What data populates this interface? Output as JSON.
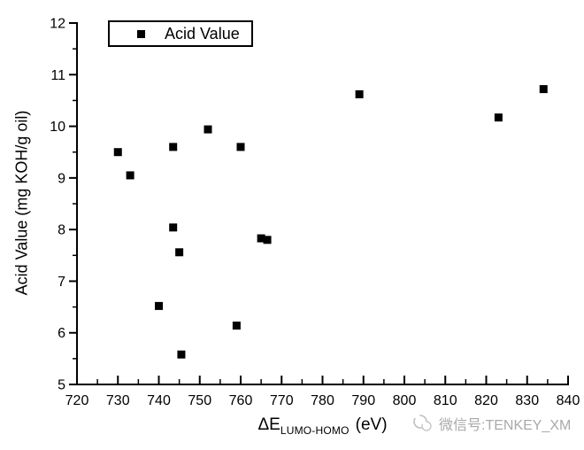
{
  "chart_data": {
    "type": "scatter",
    "title": "",
    "ylabel": "Acid Value (mg KOH/g oil)",
    "xlabel": {
      "main": "ΔE",
      "sub": "LUMO-HOMO",
      "unit": "(eV)"
    },
    "xlim": [
      720,
      840
    ],
    "ylim": [
      5,
      12
    ],
    "x_major_ticks": [
      720,
      730,
      740,
      750,
      760,
      770,
      780,
      790,
      800,
      810,
      820,
      830,
      840
    ],
    "x_minor_ticks": [
      725,
      735,
      745,
      755,
      765,
      775,
      785,
      795,
      805,
      815,
      825,
      835
    ],
    "y_major_ticks": [
      5,
      6,
      7,
      8,
      9,
      10,
      11,
      12
    ],
    "y_minor_ticks": [
      5.5,
      6.5,
      7.5,
      8.5,
      9.5,
      10.5,
      11.5
    ],
    "grid": false,
    "legend": {
      "label": "Acid Value",
      "marker": "filled-square",
      "position": "top-left-inside"
    },
    "marker_color": "#000000",
    "axis_color": "#000000",
    "background_color": "#ffffff",
    "points": [
      {
        "x": 730,
        "y": 9.5
      },
      {
        "x": 733,
        "y": 9.05
      },
      {
        "x": 743.5,
        "y": 9.6
      },
      {
        "x": 752,
        "y": 9.94
      },
      {
        "x": 760,
        "y": 9.6
      },
      {
        "x": 789,
        "y": 10.62
      },
      {
        "x": 823,
        "y": 10.17
      },
      {
        "x": 834,
        "y": 10.72
      },
      {
        "x": 743.5,
        "y": 8.04
      },
      {
        "x": 745,
        "y": 7.56
      },
      {
        "x": 765,
        "y": 7.83
      },
      {
        "x": 766.5,
        "y": 7.8
      },
      {
        "x": 740,
        "y": 6.52
      },
      {
        "x": 759,
        "y": 6.14
      },
      {
        "x": 745.5,
        "y": 5.58
      }
    ]
  },
  "watermark": {
    "text": "微信号:TENKEY_XM"
  }
}
